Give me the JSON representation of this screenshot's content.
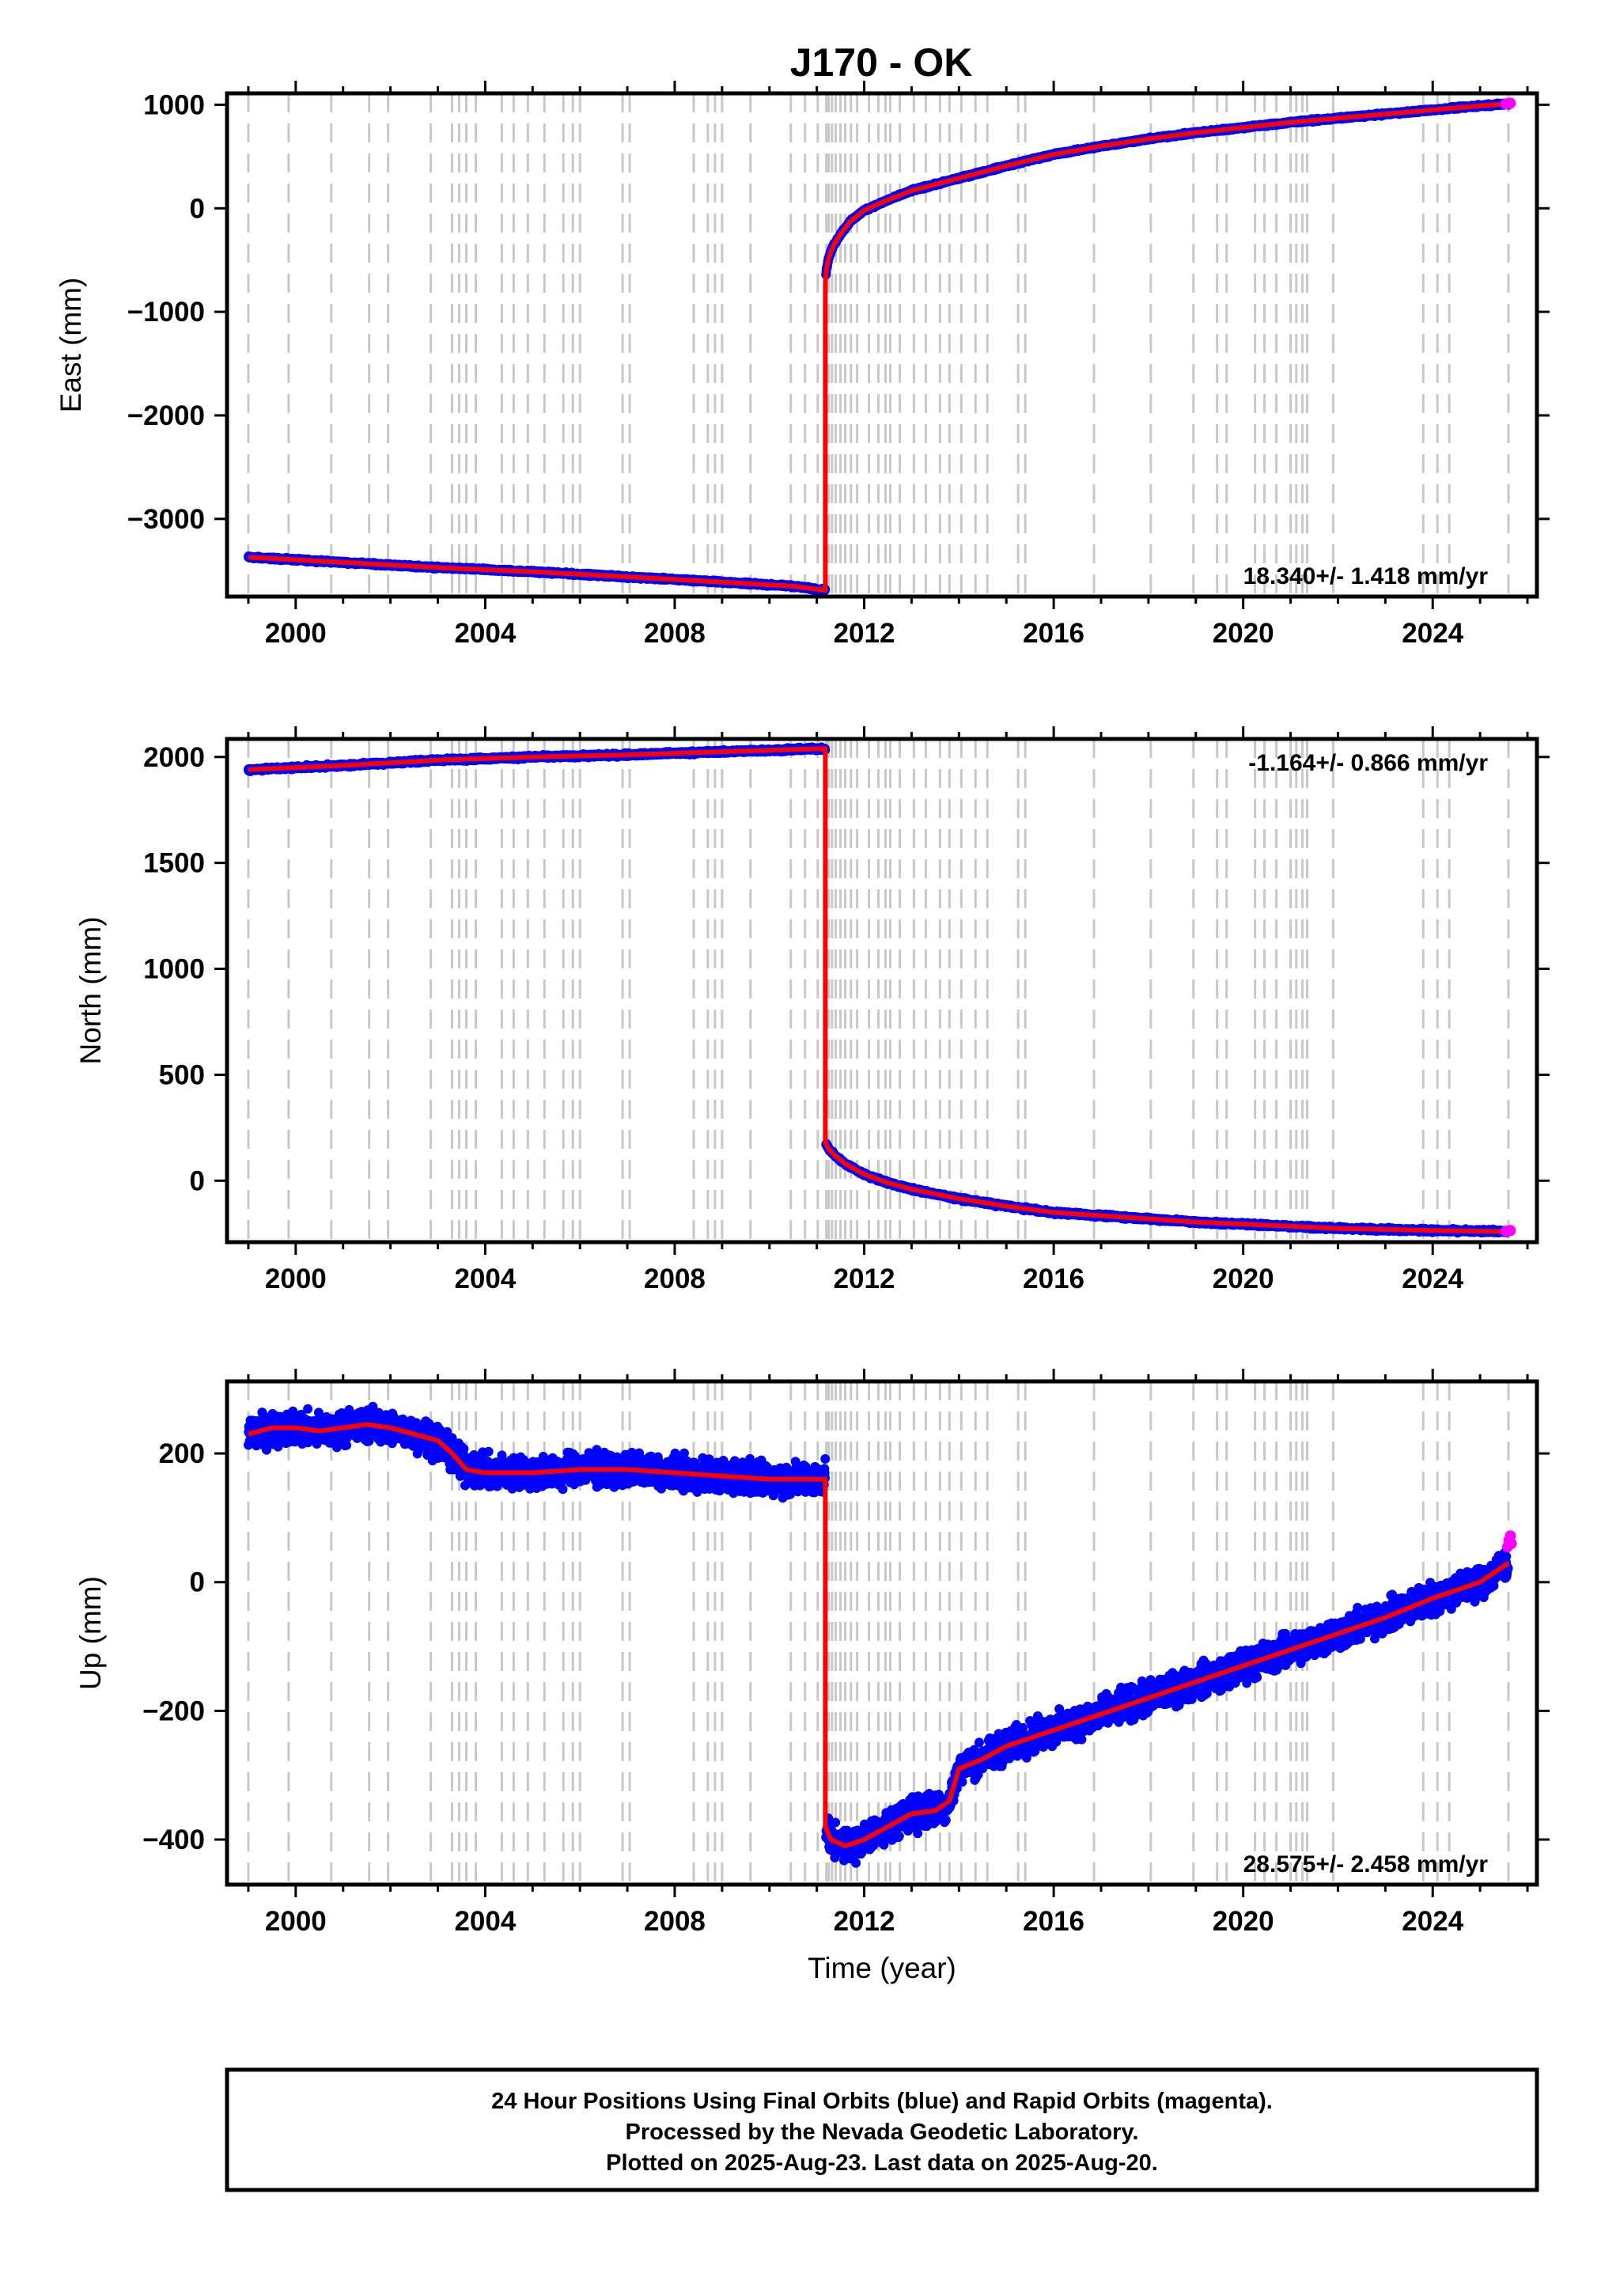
{
  "title": "J170 - OK",
  "colors": {
    "final_orbits": "#0000ff",
    "rapid_orbits": "#ff00ff",
    "model": "#ff0000",
    "event_lines": "#c8c8c8",
    "frame": "#000000"
  },
  "footer": {
    "line1": "24 Hour Positions Using Final Orbits (blue) and Rapid Orbits (magenta).",
    "line2": "Processed by the Nevada Geodetic Laboratory.",
    "line3": "Plotted on 2025-Aug-23. Last data on 2025-Aug-20."
  },
  "chart_data": [
    {
      "type": "scatter",
      "ylabel": "East (mm)",
      "xlabel": "",
      "xlim": [
        1998.55,
        2026.2
      ],
      "ylim": [
        -3750,
        1110
      ],
      "xticks": [
        2000,
        2004,
        2008,
        2012,
        2016,
        2020,
        2024
      ],
      "xtick_labels": [
        "2000",
        "2004",
        "2008",
        "2012",
        "2016",
        "2020",
        "2024"
      ],
      "yticks": [
        -3000,
        -2000,
        -1000,
        0,
        1000
      ],
      "ytick_labels": [
        "−3000",
        "−2000",
        "−1000",
        "0",
        "1000"
      ],
      "velocity_label": "18.340+/- 1.418 mm/yr",
      "velocity_position": "bottom-right",
      "noise_mm": 8,
      "series": [
        {
          "color": "#0000ff",
          "x": [
            1999.0,
            2001.0,
            2003.0,
            2005.0,
            2007.0,
            2009.0,
            2010.5,
            2011.18,
            2011.18,
            2011.2,
            2011.25,
            2011.35,
            2011.5,
            2011.7,
            2012.0,
            2012.5,
            2013.0,
            2014.0,
            2015.0,
            2016.0,
            2017.0,
            2018.0,
            2019.0,
            2020.0,
            2021.0,
            2022.0,
            2023.0,
            2024.0,
            2025.0,
            2025.6
          ],
          "y": [
            -3370,
            -3420,
            -3470,
            -3510,
            -3560,
            -3610,
            -3650,
            -3690,
            -720,
            -600,
            -480,
            -360,
            -250,
            -130,
            -20,
            80,
            170,
            290,
            410,
            520,
            600,
            670,
            730,
            780,
            830,
            870,
            910,
            950,
            990,
            1010
          ]
        }
      ],
      "rapid_points": {
        "color": "#ff00ff",
        "x": [
          2025.55,
          2025.6,
          2025.64
        ],
        "y": [
          1008,
          1012,
          1015
        ]
      },
      "event_lines_x": [
        1999.0,
        1999.85,
        2000.75,
        2001.55,
        2001.95,
        2002.85,
        2003.3,
        2003.45,
        2003.6,
        2003.8,
        2004.35,
        2004.6,
        2004.9,
        2005.25,
        2005.65,
        2005.85,
        2006.0,
        2006.9,
        2007.05,
        2008.4,
        2008.7,
        2008.85,
        2009.0,
        2009.6,
        2010.45,
        2010.75,
        2011.02,
        2011.2,
        2011.25,
        2011.32,
        2011.4,
        2011.5,
        2011.6,
        2011.72,
        2011.85,
        2012.1,
        2012.3,
        2012.45,
        2012.55,
        2012.75,
        2013.05,
        2013.3,
        2013.6,
        2013.8,
        2014.05,
        2014.35,
        2014.6,
        2015.25,
        2015.4,
        2016.85,
        2018.05,
        2018.95,
        2019.45,
        2019.65,
        2020.25,
        2020.45,
        2020.7,
        2021.0,
        2021.12,
        2021.25,
        2021.35,
        2021.9,
        2023.8,
        2024.1,
        2024.35,
        2025.6
      ]
    },
    {
      "type": "scatter",
      "ylabel": "North (mm)",
      "xlabel": "",
      "xlim": [
        1998.55,
        2026.2
      ],
      "ylim": [
        -290,
        2085
      ],
      "xticks": [
        2000,
        2004,
        2008,
        2012,
        2016,
        2020,
        2024
      ],
      "xtick_labels": [
        "2000",
        "2004",
        "2008",
        "2012",
        "2016",
        "2020",
        "2024"
      ],
      "yticks": [
        0,
        500,
        1000,
        1500,
        2000
      ],
      "ytick_labels": [
        "0",
        "500",
        "1000",
        "1500",
        "2000"
      ],
      "velocity_label": "-1.164+/- 0.866 mm/yr",
      "velocity_position": "top-right",
      "noise_mm": 5,
      "series": [
        {
          "color": "#0000ff",
          "x": [
            1999.0,
            2001.0,
            2003.0,
            2005.0,
            2007.0,
            2009.0,
            2010.5,
            2011.18,
            2011.18,
            2011.25,
            2011.4,
            2011.6,
            2012.0,
            2012.5,
            2013.0,
            2014.0,
            2015.0,
            2016.0,
            2017.0,
            2018.0,
            2019.0,
            2020.0,
            2021.0,
            2022.0,
            2023.0,
            2024.0,
            2025.0,
            2025.6
          ],
          "y": [
            1940,
            1960,
            1985,
            2000,
            2010,
            2025,
            2035,
            2040,
            180,
            150,
            115,
            80,
            30,
            -10,
            -40,
            -85,
            -120,
            -150,
            -165,
            -180,
            -195,
            -205,
            -215,
            -225,
            -230,
            -235,
            -238,
            -240
          ]
        }
      ],
      "rapid_points": {
        "color": "#ff00ff",
        "x": [
          2025.55,
          2025.6,
          2025.64
        ],
        "y": [
          -238,
          -236,
          -235
        ]
      },
      "event_lines_x": [
        1999.0,
        1999.85,
        2000.75,
        2001.55,
        2001.95,
        2002.85,
        2003.3,
        2003.45,
        2003.6,
        2003.8,
        2004.35,
        2004.6,
        2004.9,
        2005.25,
        2005.65,
        2005.85,
        2006.0,
        2006.9,
        2007.05,
        2008.4,
        2008.7,
        2008.85,
        2009.0,
        2009.6,
        2010.45,
        2010.75,
        2011.02,
        2011.2,
        2011.25,
        2011.32,
        2011.4,
        2011.5,
        2011.6,
        2011.72,
        2011.85,
        2012.1,
        2012.3,
        2012.45,
        2012.55,
        2012.75,
        2013.05,
        2013.3,
        2013.6,
        2013.8,
        2014.05,
        2014.35,
        2014.6,
        2015.25,
        2015.4,
        2016.85,
        2018.05,
        2018.95,
        2019.45,
        2019.65,
        2020.25,
        2020.45,
        2020.7,
        2021.0,
        2021.12,
        2021.25,
        2021.35,
        2021.9,
        2023.8,
        2024.1,
        2024.35,
        2025.6
      ]
    },
    {
      "type": "scatter",
      "ylabel": "Up (mm)",
      "xlabel": "Time (year)",
      "xlim": [
        1998.55,
        2026.2
      ],
      "ylim": [
        -470,
        312
      ],
      "xticks": [
        2000,
        2004,
        2008,
        2012,
        2016,
        2020,
        2024
      ],
      "xtick_labels": [
        "2000",
        "2004",
        "2008",
        "2012",
        "2016",
        "2020",
        "2024"
      ],
      "yticks": [
        -400,
        -200,
        0,
        200
      ],
      "ytick_labels": [
        "−400",
        "−200",
        "0",
        "200"
      ],
      "velocity_label": "28.575+/- 2.458 mm/yr",
      "velocity_position": "bottom-right",
      "noise_mm": 17,
      "series": [
        {
          "color": "#0000ff",
          "x": [
            1999.0,
            1999.5,
            2000.0,
            2000.5,
            2001.0,
            2001.5,
            2002.0,
            2002.5,
            2003.0,
            2003.3,
            2003.6,
            2004.0,
            2005.0,
            2006.0,
            2007.0,
            2008.0,
            2009.0,
            2010.0,
            2011.18,
            2011.18,
            2011.3,
            2011.6,
            2012.0,
            2012.5,
            2013.0,
            2013.5,
            2013.8,
            2014.0,
            2014.5,
            2015.0,
            2016.0,
            2017.0,
            2018.0,
            2019.0,
            2020.0,
            2021.0,
            2022.0,
            2023.0,
            2024.0,
            2025.0,
            2025.6
          ],
          "y": [
            230,
            240,
            240,
            235,
            240,
            245,
            240,
            230,
            220,
            200,
            175,
            170,
            170,
            175,
            175,
            170,
            165,
            160,
            160,
            -380,
            -400,
            -410,
            -400,
            -380,
            -360,
            -355,
            -340,
            -290,
            -275,
            -255,
            -230,
            -205,
            -180,
            -155,
            -130,
            -105,
            -80,
            -55,
            -25,
            0,
            30
          ]
        }
      ],
      "rapid_points": {
        "color": "#ff00ff",
        "x": [
          2025.58,
          2025.61,
          2025.64,
          2025.66
        ],
        "y": [
          55,
          65,
          72,
          60
        ]
      },
      "event_lines_x": [
        1999.0,
        1999.85,
        2000.75,
        2001.55,
        2001.95,
        2002.85,
        2003.3,
        2003.45,
        2003.6,
        2003.8,
        2004.35,
        2004.6,
        2004.9,
        2005.25,
        2005.65,
        2005.85,
        2006.0,
        2006.9,
        2007.05,
        2008.4,
        2008.7,
        2008.85,
        2009.0,
        2009.6,
        2010.45,
        2010.75,
        2011.02,
        2011.2,
        2011.25,
        2011.32,
        2011.4,
        2011.5,
        2011.6,
        2011.72,
        2011.85,
        2012.1,
        2012.3,
        2012.45,
        2012.55,
        2012.75,
        2013.05,
        2013.3,
        2013.6,
        2013.8,
        2014.05,
        2014.35,
        2014.6,
        2015.25,
        2015.4,
        2016.85,
        2018.05,
        2018.95,
        2019.45,
        2019.65,
        2020.25,
        2020.45,
        2020.7,
        2021.0,
        2021.12,
        2021.25,
        2021.35,
        2021.9,
        2023.8,
        2024.1,
        2024.35,
        2025.6
      ]
    }
  ]
}
